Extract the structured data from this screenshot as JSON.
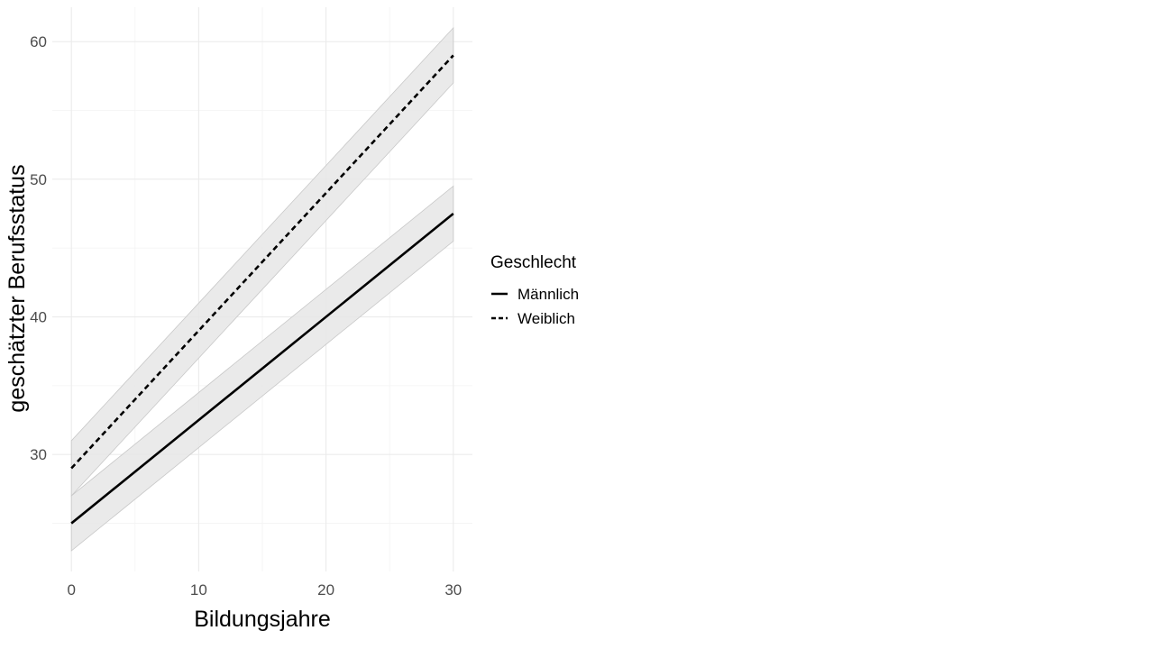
{
  "chart_data": {
    "type": "line",
    "title": "",
    "xlabel": "Bildungsjahre",
    "ylabel": "geschätzter Berufsstatus",
    "xlim": [
      -1.5,
      31.5
    ],
    "ylim": [
      21.5,
      62.5
    ],
    "x_ticks": [
      0,
      10,
      20,
      30
    ],
    "y_ticks": [
      30,
      40,
      50,
      60
    ],
    "x_tick_labels": [
      "0",
      "10",
      "20",
      "30"
    ],
    "y_tick_labels": [
      "30",
      "40",
      "50",
      "60"
    ],
    "grid": true,
    "legend": {
      "title": "Geschlecht",
      "position": "right"
    },
    "band_color": "#e6e6e6",
    "series": [
      {
        "name": "Männlich",
        "linetype": "solid",
        "color": "#000000",
        "x": [
          0,
          30
        ],
        "y": [
          25,
          47.5
        ],
        "lower": [
          23,
          45.5
        ],
        "upper": [
          27,
          49.5
        ]
      },
      {
        "name": "Weiblich",
        "linetype": "dashed",
        "color": "#000000",
        "x": [
          0,
          30
        ],
        "y": [
          29,
          59
        ],
        "lower": [
          27,
          57
        ],
        "upper": [
          31,
          61
        ]
      }
    ]
  }
}
